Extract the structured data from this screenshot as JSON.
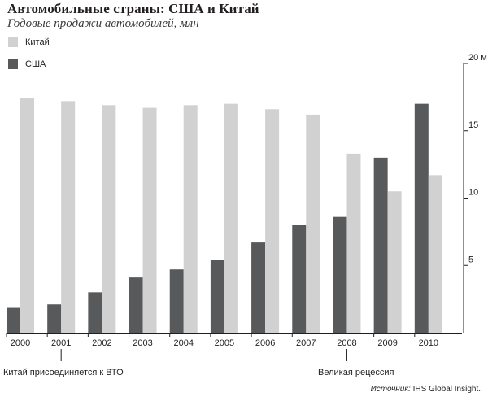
{
  "header": {
    "title": "Автомобильные страны: США и Китай",
    "subtitle": "Годовые продажи автомобилей, млн"
  },
  "colors": {
    "china": "#d1d1d1",
    "usa": "#58595b",
    "axis": "#231f20"
  },
  "chart_data": {
    "type": "bar",
    "title": "Автомобильные страны: США и Китай",
    "subtitle": "Годовые продажи автомобилей, млн",
    "categories": [
      "2000",
      "2001",
      "2002",
      "2003",
      "2004",
      "2005",
      "2006",
      "2007",
      "2008",
      "2009",
      "2010"
    ],
    "series": [
      {
        "name": "США",
        "values": [
          1.9,
          2.1,
          3.0,
          4.1,
          4.7,
          5.4,
          6.7,
          8.0,
          8.6,
          13.0,
          17.0
        ]
      },
      {
        "name": "Китай",
        "values": [
          17.4,
          17.2,
          16.9,
          16.7,
          16.9,
          17.0,
          16.6,
          16.2,
          13.3,
          10.5,
          11.7
        ]
      }
    ],
    "legend": [
      "Китай",
      "США"
    ],
    "legend_position": "top-left",
    "y_ticks": [
      "5",
      "10",
      "15",
      "20 м"
    ],
    "ylim": [
      0,
      20
    ],
    "y_axis_side": "right",
    "grid": false,
    "annotations": [
      {
        "category": "2001",
        "text": "Китай присоединяется к ВТО"
      },
      {
        "category": "2008",
        "text": "Великая рецессия"
      }
    ]
  },
  "footer": {
    "source_prefix": "Источник:",
    "source_text": " IHS Global Insight."
  }
}
